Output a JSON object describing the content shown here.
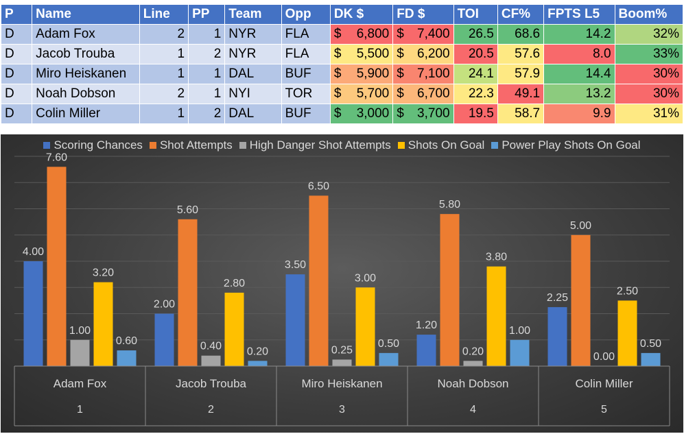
{
  "table": {
    "headers": [
      "P",
      "Name",
      "Line",
      "PP",
      "Team",
      "Opp",
      "DK $",
      "FD $",
      "TOI",
      "CF%",
      "FPTS L5",
      "Boom%"
    ],
    "currency_symbol": "$",
    "rows": [
      {
        "pos": "D",
        "name": "Adam Fox",
        "line": "2",
        "pp": "1",
        "team": "NYR",
        "opp": "FLA",
        "dk": "6,800",
        "fd": "7,400",
        "toi": "26.5",
        "cf": "68.6",
        "fpts": "14.2",
        "boom": "32%"
      },
      {
        "pos": "D",
        "name": "Jacob Trouba",
        "line": "1",
        "pp": "2",
        "team": "NYR",
        "opp": "FLA",
        "dk": "5,500",
        "fd": "6,200",
        "toi": "20.5",
        "cf": "57.6",
        "fpts": "8.0",
        "boom": "33%"
      },
      {
        "pos": "D",
        "name": "Miro Heiskanen",
        "line": "1",
        "pp": "1",
        "team": "DAL",
        "opp": "BUF",
        "dk": "5,900",
        "fd": "7,100",
        "toi": "24.1",
        "cf": "57.9",
        "fpts": "14.4",
        "boom": "30%"
      },
      {
        "pos": "D",
        "name": "Noah Dobson",
        "line": "2",
        "pp": "1",
        "team": "NYI",
        "opp": "TOR",
        "dk": "5,700",
        "fd": "6,700",
        "toi": "22.3",
        "cf": "49.1",
        "fpts": "13.2",
        "boom": "30%"
      },
      {
        "pos": "D",
        "name": "Colin Miller",
        "line": "1",
        "pp": "2",
        "team": "DAL",
        "opp": "BUF",
        "dk": "3,000",
        "fd": "3,700",
        "toi": "19.5",
        "cf": "58.7",
        "fpts": "9.9",
        "boom": "31%"
      }
    ],
    "cell_colors": {
      "dk": [
        "#f8696b",
        "#fee983",
        "#fcaa78",
        "#fdc97e",
        "#63be7b"
      ],
      "fd": [
        "#f8696b",
        "#fed880",
        "#f9856f",
        "#fcb77a",
        "#63be7b"
      ],
      "toi": [
        "#63be7b",
        "#f8696b",
        "#c4e17f",
        "#fee983",
        "#f8696b"
      ],
      "cf": [
        "#63be7b",
        "#fee983",
        "#fee983",
        "#f8696b",
        "#fee983"
      ],
      "fpts": [
        "#63be7b",
        "#f8696b",
        "#63be7b",
        "#8ccb7e",
        "#f98870"
      ],
      "boom": [
        "#b0d680",
        "#63be7b",
        "#f8696b",
        "#f8696b",
        "#fee983"
      ]
    }
  },
  "chart_data": {
    "type": "bar",
    "title": "",
    "xlabel": "",
    "ylabel": "",
    "ylim": [
      0,
      8
    ],
    "grid": true,
    "legend_position": "top",
    "categories": [
      "Adam Fox",
      "Jacob Trouba",
      "Miro Heiskanen",
      "Noah Dobson",
      "Colin Miller"
    ],
    "category_numbers": [
      "1",
      "2",
      "3",
      "4",
      "5"
    ],
    "series": [
      {
        "name": "Scoring Chances",
        "color": "#4472c4",
        "values": [
          4.0,
          2.0,
          3.5,
          1.2,
          2.25
        ]
      },
      {
        "name": "Shot Attempts",
        "color": "#ed7d31",
        "values": [
          7.6,
          5.6,
          6.5,
          5.8,
          5.0
        ]
      },
      {
        "name": "High Danger Shot Attempts",
        "color": "#a5a5a5",
        "values": [
          1.0,
          0.4,
          0.25,
          0.2,
          0.0
        ]
      },
      {
        "name": "Shots On Goal",
        "color": "#ffc000",
        "values": [
          3.2,
          2.8,
          3.0,
          3.8,
          2.5
        ]
      },
      {
        "name": "Power Play Shots On Goal",
        "color": "#5b9bd5",
        "values": [
          0.6,
          0.2,
          0.5,
          1.0,
          0.5
        ]
      }
    ],
    "data_labels": [
      [
        "4.00",
        "2.00",
        "3.50",
        "1.20",
        "2.25"
      ],
      [
        "7.60",
        "5.60",
        "6.50",
        "5.80",
        "5.00"
      ],
      [
        "1.00",
        "0.40",
        "0.25",
        "0.20",
        "0.00"
      ],
      [
        "3.20",
        "2.80",
        "3.00",
        "3.80",
        "2.50"
      ],
      [
        "0.60",
        "0.20",
        "0.50",
        "1.00",
        "0.50"
      ]
    ]
  }
}
